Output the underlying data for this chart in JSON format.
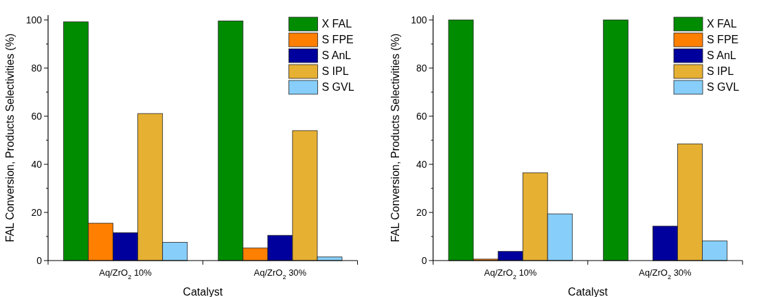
{
  "chart_data": [
    {
      "type": "bar",
      "xlabel": "Catalyst",
      "ylabel": "FAL Conversion, Products Selectivities (%)",
      "categories": [
        "Aq/ZrO$_{2}$ 10%",
        "Aq/ZrO$_{2}$ 30%"
      ],
      "series": [
        {
          "name": "X FAL",
          "color": "#008c00",
          "values": [
            99.2,
            99.6
          ]
        },
        {
          "name": "S FPE",
          "color": "#ff7f00",
          "values": [
            15.5,
            5.2
          ]
        },
        {
          "name": "S AnL",
          "color": "#00009c",
          "values": [
            11.6,
            10.5
          ]
        },
        {
          "name": "S IPL",
          "color": "#e6b033",
          "values": [
            61.1,
            54.0
          ]
        },
        {
          "name": "S GVL",
          "color": "#87cefa",
          "values": [
            7.6,
            1.5
          ]
        }
      ],
      "ylim": [
        0,
        102
      ],
      "yticks": [
        0,
        {
          "value": 10,
          "label": null
        },
        20,
        {
          "value": 30,
          "label": null
        },
        40,
        {
          "value": 50,
          "label": null
        },
        60,
        {
          "value": 70,
          "label": null
        },
        80,
        {
          "value": 90,
          "label": null
        },
        100
      ],
      "legend": "top right",
      "grid": false
    },
    {
      "type": "bar",
      "xlabel": "Catalyst",
      "ylabel": "FAL Conversion, Products Selectivities (%)",
      "categories": [
        "Aq/ZrO$_{2}$ 10%",
        "Aq/ZrO$_{2}$ 30%"
      ],
      "series": [
        {
          "name": "X FAL",
          "color": "#008c00",
          "values": [
            100,
            100
          ]
        },
        {
          "name": "S FPE",
          "color": "#ff7f00",
          "values": [
            0.6,
            0
          ]
        },
        {
          "name": "S AnL",
          "color": "#00009c",
          "values": [
            3.8,
            14.3
          ]
        },
        {
          "name": "S IPL",
          "color": "#e6b033",
          "values": [
            36.5,
            48.5
          ]
        },
        {
          "name": "S GVL",
          "color": "#87cefa",
          "values": [
            19.4,
            8.2
          ]
        }
      ],
      "ylim": [
        0,
        102
      ],
      "yticks": [
        0,
        {
          "value": 10,
          "label": null
        },
        20,
        {
          "value": 30,
          "label": null
        },
        40,
        {
          "value": 50,
          "label": null
        },
        60,
        {
          "value": 70,
          "label": null
        },
        80,
        {
          "value": 90,
          "label": null
        },
        100
      ],
      "legend": "top right",
      "grid": false
    }
  ]
}
